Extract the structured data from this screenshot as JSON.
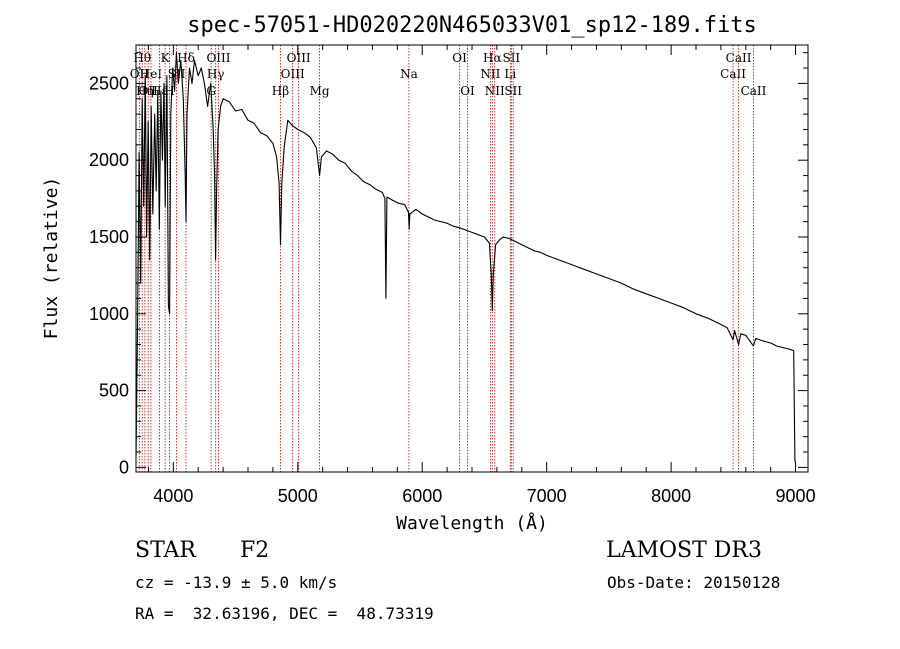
{
  "chart_data": {
    "type": "line",
    "title": "spec-57051-HD020220N465033V01_sp12-189.fits",
    "xlabel": "Wavelength (Å)",
    "ylabel": "Flux (relative)",
    "xlim": [
      3700,
      9100
    ],
    "ylim": [
      -30,
      2750
    ],
    "x_ticks": [
      4000,
      5000,
      6000,
      7000,
      8000,
      9000
    ],
    "y_ticks": [
      0,
      500,
      1000,
      1500,
      2000,
      2500
    ],
    "grid": false,
    "series": [
      {
        "name": "flux",
        "points": [
          [
            3700,
            60
          ],
          [
            3712,
            900
          ],
          [
            3725,
            2050
          ],
          [
            3738,
            1200
          ],
          [
            3750,
            2400
          ],
          [
            3762,
            1700
          ],
          [
            3775,
            2550
          ],
          [
            3785,
            1500
          ],
          [
            3798,
            2250
          ],
          [
            3810,
            1350
          ],
          [
            3822,
            2350
          ],
          [
            3835,
            1650
          ],
          [
            3850,
            2300
          ],
          [
            3862,
            1800
          ],
          [
            3875,
            2450
          ],
          [
            3887,
            1550
          ],
          [
            3900,
            2450
          ],
          [
            3912,
            2000
          ],
          [
            3925,
            2500
          ],
          [
            3935,
            1700
          ],
          [
            3948,
            2550
          ],
          [
            3960,
            1050
          ],
          [
            3970,
            1000
          ],
          [
            3980,
            2300
          ],
          [
            3995,
            2600
          ],
          [
            4010,
            2450
          ],
          [
            4025,
            2700
          ],
          [
            4040,
            2500
          ],
          [
            4060,
            2650
          ],
          [
            4080,
            2400
          ],
          [
            4095,
            1900
          ],
          [
            4102,
            1600
          ],
          [
            4110,
            2300
          ],
          [
            4130,
            2600
          ],
          [
            4150,
            2500
          ],
          [
            4170,
            2650
          ],
          [
            4200,
            2550
          ],
          [
            4225,
            2600
          ],
          [
            4250,
            2500
          ],
          [
            4275,
            2350
          ],
          [
            4300,
            2500
          ],
          [
            4320,
            2200
          ],
          [
            4332,
            1900
          ],
          [
            4340,
            1350
          ],
          [
            4348,
            1800
          ],
          [
            4360,
            2200
          ],
          [
            4380,
            2350
          ],
          [
            4400,
            2400
          ],
          [
            4450,
            2380
          ],
          [
            4500,
            2320
          ],
          [
            4550,
            2330
          ],
          [
            4600,
            2260
          ],
          [
            4650,
            2240
          ],
          [
            4700,
            2180
          ],
          [
            4750,
            2160
          ],
          [
            4800,
            2110
          ],
          [
            4830,
            2020
          ],
          [
            4850,
            1850
          ],
          [
            4861,
            1450
          ],
          [
            4872,
            1850
          ],
          [
            4890,
            2080
          ],
          [
            4920,
            2260
          ],
          [
            4950,
            2230
          ],
          [
            5000,
            2200
          ],
          [
            5050,
            2180
          ],
          [
            5100,
            2150
          ],
          [
            5150,
            2080
          ],
          [
            5175,
            1900
          ],
          [
            5190,
            2020
          ],
          [
            5230,
            2060
          ],
          [
            5280,
            2040
          ],
          [
            5330,
            2000
          ],
          [
            5380,
            1980
          ],
          [
            5430,
            1930
          ],
          [
            5480,
            1900
          ],
          [
            5530,
            1860
          ],
          [
            5580,
            1840
          ],
          [
            5630,
            1810
          ],
          [
            5680,
            1790
          ],
          [
            5700,
            1750
          ],
          [
            5708,
            1100
          ],
          [
            5716,
            1760
          ],
          [
            5760,
            1740
          ],
          [
            5810,
            1720
          ],
          [
            5860,
            1710
          ],
          [
            5890,
            1660
          ],
          [
            5895,
            1550
          ],
          [
            5900,
            1650
          ],
          [
            5950,
            1680
          ],
          [
            6000,
            1650
          ],
          [
            6050,
            1630
          ],
          [
            6100,
            1610
          ],
          [
            6150,
            1600
          ],
          [
            6200,
            1590
          ],
          [
            6250,
            1570
          ],
          [
            6300,
            1560
          ],
          [
            6350,
            1545
          ],
          [
            6400,
            1530
          ],
          [
            6450,
            1515
          ],
          [
            6500,
            1500
          ],
          [
            6540,
            1460
          ],
          [
            6555,
            1250
          ],
          [
            6563,
            1020
          ],
          [
            6571,
            1260
          ],
          [
            6590,
            1450
          ],
          [
            6620,
            1480
          ],
          [
            6650,
            1500
          ],
          [
            6700,
            1490
          ],
          [
            6750,
            1470
          ],
          [
            6800,
            1450
          ],
          [
            6850,
            1430
          ],
          [
            6900,
            1410
          ],
          [
            6950,
            1400
          ],
          [
            7000,
            1380
          ],
          [
            7100,
            1350
          ],
          [
            7200,
            1320
          ],
          [
            7300,
            1290
          ],
          [
            7400,
            1260
          ],
          [
            7500,
            1230
          ],
          [
            7600,
            1200
          ],
          [
            7700,
            1160
          ],
          [
            7800,
            1130
          ],
          [
            7900,
            1100
          ],
          [
            8000,
            1070
          ],
          [
            8100,
            1040
          ],
          [
            8200,
            1000
          ],
          [
            8300,
            970
          ],
          [
            8400,
            930
          ],
          [
            8450,
            910
          ],
          [
            8498,
            830
          ],
          [
            8510,
            890
          ],
          [
            8542,
            800
          ],
          [
            8560,
            870
          ],
          [
            8600,
            860
          ],
          [
            8662,
            790
          ],
          [
            8680,
            840
          ],
          [
            8750,
            820
          ],
          [
            8800,
            810
          ],
          [
            8850,
            790
          ],
          [
            8900,
            780
          ],
          [
            8950,
            770
          ],
          [
            8985,
            760
          ],
          [
            8995,
            50
          ],
          [
            9000,
            20
          ]
        ]
      }
    ],
    "line_markers": [
      {
        "wavelength": 3727,
        "label": "OII",
        "row": 1
      },
      {
        "wavelength": 3750,
        "label": "Hθ",
        "row": 0
      },
      {
        "wavelength": 3771,
        "label": "Hη",
        "row": 2
      },
      {
        "wavelength": 3798,
        "label": "OII",
        "row": 2
      },
      {
        "wavelength": 3820,
        "label": "HeI",
        "row": 1
      },
      {
        "wavelength": 3889,
        "label": "Hε",
        "row": 2
      },
      {
        "wavelength": 3934,
        "label": "K",
        "row": 0
      },
      {
        "wavelength": 3969,
        "label": "H",
        "row": 2
      },
      {
        "wavelength": 4026,
        "label": "SII",
        "row": 1
      },
      {
        "wavelength": 4102,
        "label": "Hδ",
        "row": 0
      },
      {
        "wavelength": 4304,
        "label": "G",
        "row": 2
      },
      {
        "wavelength": 4340,
        "label": "Hγ",
        "row": 1
      },
      {
        "wavelength": 4363,
        "label": "OIII",
        "row": 0
      },
      {
        "wavelength": 4861,
        "label": "Hβ",
        "row": 2
      },
      {
        "wavelength": 4959,
        "label": "OIII",
        "row": 1
      },
      {
        "wavelength": 5007,
        "label": "OIII",
        "row": 0
      },
      {
        "wavelength": 5175,
        "label": "Mg",
        "row": 2
      },
      {
        "wavelength": 5893,
        "label": "Na",
        "row": 1
      },
      {
        "wavelength": 6300,
        "label": "OI",
        "row": 0
      },
      {
        "wavelength": 6364,
        "label": "OI",
        "row": 2
      },
      {
        "wavelength": 6548,
        "label": "NII",
        "row": 1
      },
      {
        "wavelength": 6563,
        "label": "Hα",
        "row": 0
      },
      {
        "wavelength": 6583,
        "label": "NII",
        "row": 2
      },
      {
        "wavelength": 6708,
        "label": "Li",
        "row": 1
      },
      {
        "wavelength": 6716,
        "label": "SII",
        "row": 0
      },
      {
        "wavelength": 6731,
        "label": "SII",
        "row": 2
      },
      {
        "wavelength": 8498,
        "label": "CaII",
        "row": 1
      },
      {
        "wavelength": 8542,
        "label": "CaII",
        "row": 0
      },
      {
        "wavelength": 8662,
        "label": "CaII",
        "row": 2
      }
    ]
  },
  "footer": {
    "object_class": "STAR",
    "subclass": "F2",
    "survey": "LAMOST DR3",
    "redshift_text": "cz = -13.9 ± 5.0 km/s",
    "obs_date": "Obs-Date: 20150128",
    "coords": "RA =  32.63196, DEC =  48.73319"
  },
  "colors": {
    "spectrum": "#000000",
    "marker_line": "#b22222",
    "axis": "#000000"
  }
}
